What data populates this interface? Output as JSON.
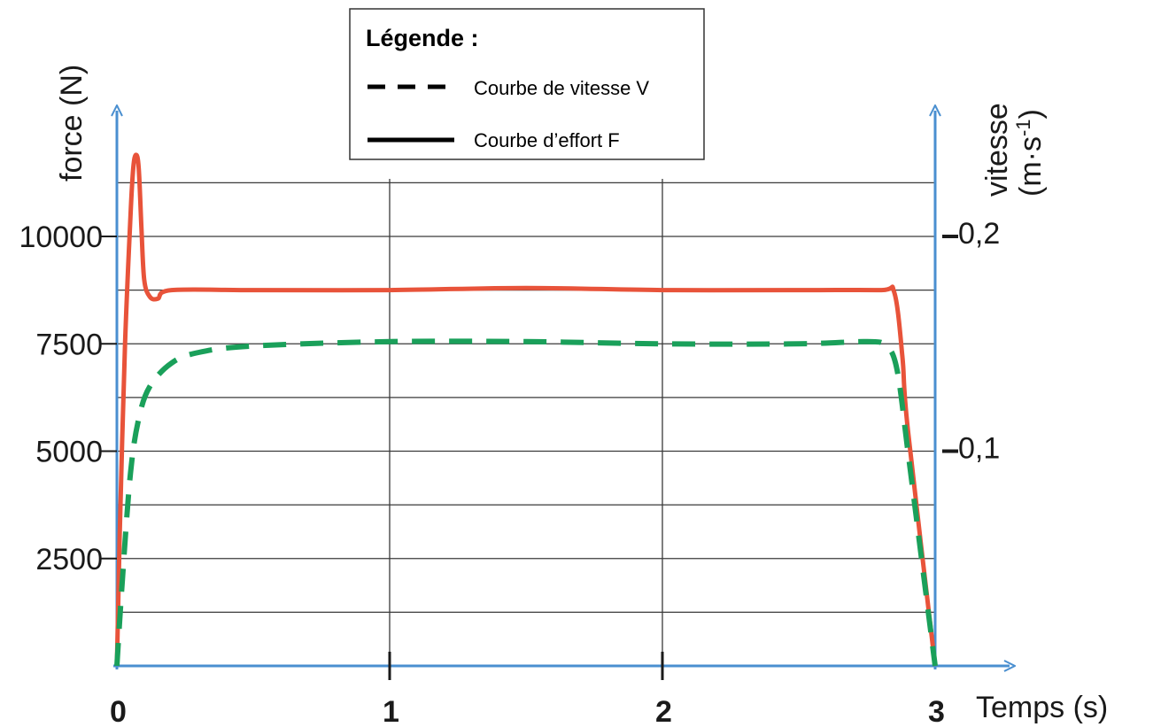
{
  "chart_data": {
    "type": "line",
    "x_axis": {
      "label": "Temps (s)",
      "range": [
        0,
        3
      ],
      "ticks": [
        {
          "value": 0,
          "label": "0"
        },
        {
          "value": 1,
          "label": "1"
        },
        {
          "value": 2,
          "label": "2"
        },
        {
          "value": 3,
          "label": "3"
        }
      ]
    },
    "y_left_axis": {
      "label": "force (N)",
      "range": [
        0,
        12000
      ],
      "ticks": [
        {
          "value": 2500,
          "label": "2500"
        },
        {
          "value": 5000,
          "label": "5000"
        },
        {
          "value": 7500,
          "label": "7500"
        },
        {
          "value": 10000,
          "label": "10000"
        }
      ]
    },
    "y_right_axis": {
      "label_line1": "vitesse",
      "label_line2_prefix": "(m·s",
      "label_line2_sup": "-1",
      "label_line2_suffix": ")",
      "range": [
        0,
        0.24
      ],
      "ticks": [
        {
          "value": 0.1,
          "label": "0,1"
        },
        {
          "value": 0.2,
          "label": "0,2"
        }
      ]
    },
    "grid": true,
    "legend": {
      "title": "Légende :",
      "placement": "top-center",
      "entries": [
        {
          "label": "Courbe de vitesse V",
          "style": "dashed"
        },
        {
          "label": "Courbe d’effort F",
          "style": "solid"
        }
      ]
    },
    "series": [
      {
        "id": "force",
        "axis": "left",
        "color": "#e8533a",
        "style": "solid",
        "x": [
          0,
          0.01,
          0.03,
          0.05,
          0.06,
          0.07,
          0.08,
          0.09,
          0.1,
          0.12,
          0.15,
          0.2,
          0.5,
          1.0,
          1.5,
          2.0,
          2.5,
          2.8,
          2.85,
          2.88,
          2.9,
          3.0
        ],
        "y": [
          0,
          3000,
          7500,
          10500,
          11600,
          11900,
          11600,
          10200,
          9000,
          8600,
          8550,
          8750,
          8750,
          8750,
          8800,
          8750,
          8750,
          8750,
          8700,
          7200,
          5500,
          0
        ]
      },
      {
        "id": "vitesse",
        "axis": "right",
        "color": "#1aa05a",
        "style": "dashed",
        "x": [
          0,
          0.02,
          0.05,
          0.08,
          0.12,
          0.2,
          0.3,
          0.5,
          1.0,
          1.5,
          2.0,
          2.5,
          2.75,
          2.82,
          2.86,
          2.9,
          2.95,
          3.0
        ],
        "y": [
          0,
          0.04,
          0.09,
          0.115,
          0.13,
          0.141,
          0.146,
          0.149,
          0.151,
          0.151,
          0.15,
          0.15,
          0.151,
          0.149,
          0.138,
          0.1,
          0.05,
          0
        ]
      }
    ]
  }
}
